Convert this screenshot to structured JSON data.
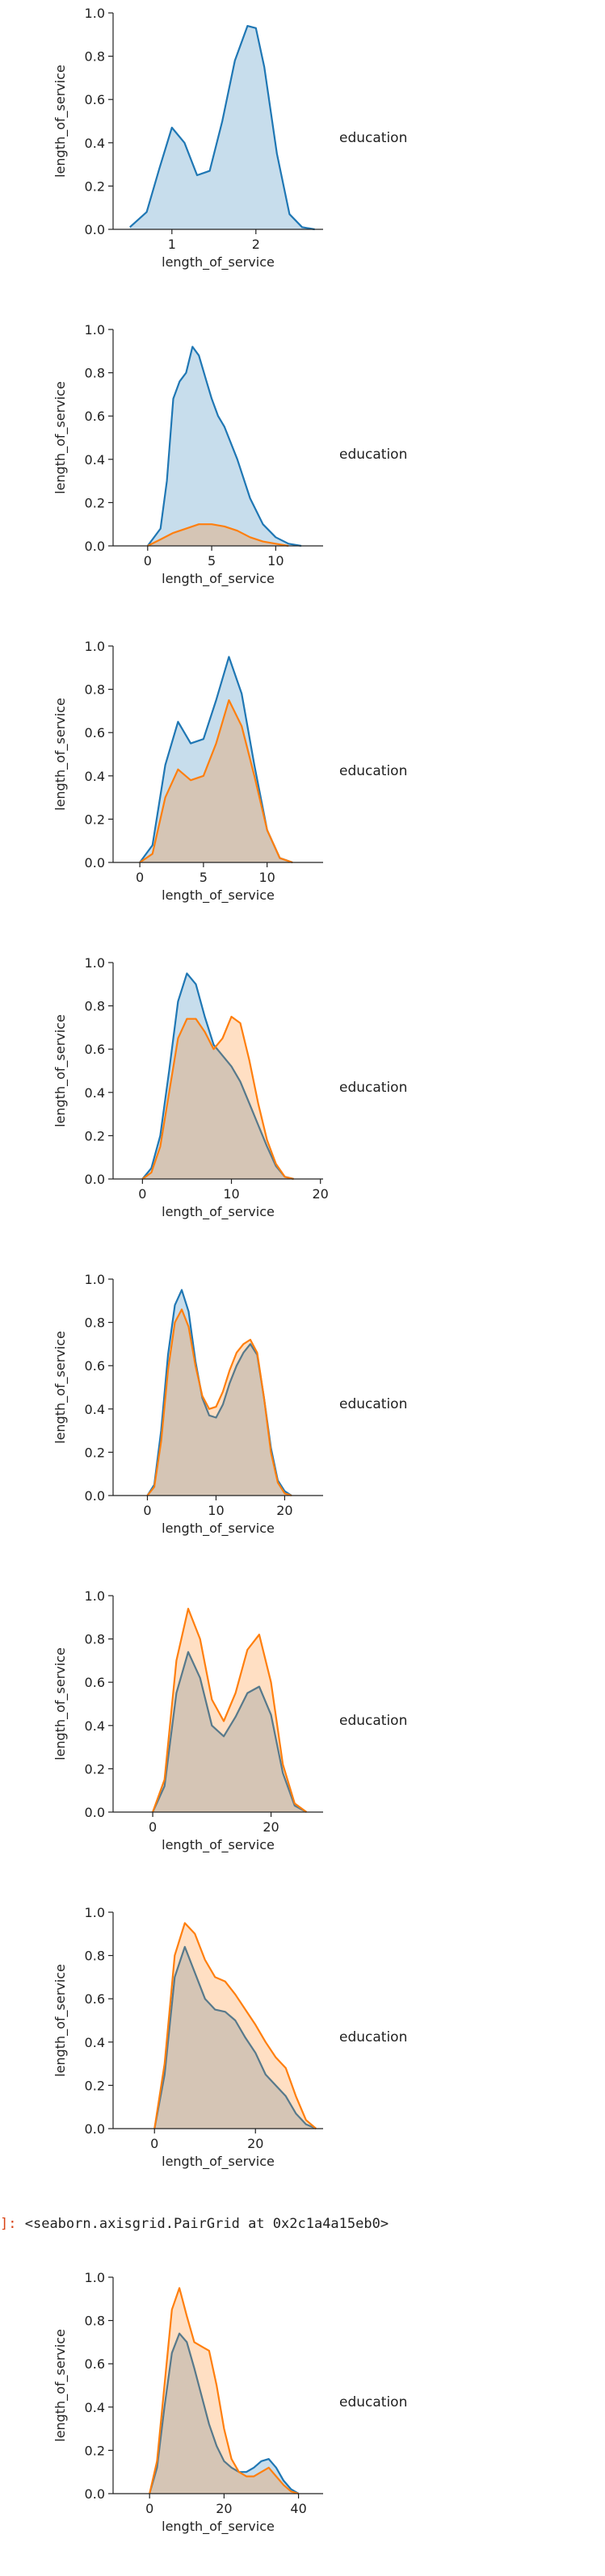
{
  "output_prompt": "]:",
  "output_text": "<seaborn.axisgrid.PairGrid at 0x2c1a4a15eb0>",
  "colors": {
    "series_a": "#1f77b4",
    "series_b": "#ff7f0e"
  },
  "chart_data": [
    {
      "type": "area",
      "title": "",
      "xlabel": "length_of_service",
      "ylabel": "length_of_service",
      "legend_title": "education",
      "ylim": [
        0,
        1
      ],
      "xlim": [
        0.3,
        2.8
      ],
      "xticks": [
        1,
        2
      ],
      "yticks": [
        0.0,
        0.2,
        0.4,
        0.6,
        0.8,
        1.0
      ],
      "series": [
        {
          "name": "series_a",
          "color": "#1f77b4",
          "x": [
            0.5,
            0.7,
            0.85,
            1.0,
            1.15,
            1.3,
            1.45,
            1.6,
            1.75,
            1.9,
            2.0,
            2.1,
            2.25,
            2.4,
            2.55,
            2.7
          ],
          "y": [
            0.01,
            0.08,
            0.28,
            0.47,
            0.4,
            0.25,
            0.27,
            0.5,
            0.78,
            0.94,
            0.93,
            0.75,
            0.35,
            0.07,
            0.01,
            0.0
          ]
        }
      ]
    },
    {
      "type": "area",
      "title": "",
      "xlabel": "length_of_service",
      "ylabel": "length_of_service",
      "legend_title": "education",
      "ylim": [
        0,
        1
      ],
      "xlim": [
        -2.7,
        13.7
      ],
      "xticks": [
        0,
        5,
        10
      ],
      "yticks": [
        0.0,
        0.2,
        0.4,
        0.6,
        0.8,
        1.0
      ],
      "series": [
        {
          "name": "series_a",
          "color": "#1f77b4",
          "x": [
            0,
            1,
            1.5,
            2,
            2.5,
            3,
            3.5,
            4,
            4.5,
            5,
            5.5,
            6,
            7,
            8,
            9,
            10,
            11,
            12
          ],
          "y": [
            0.0,
            0.08,
            0.3,
            0.68,
            0.76,
            0.8,
            0.92,
            0.88,
            0.78,
            0.68,
            0.6,
            0.55,
            0.4,
            0.22,
            0.1,
            0.04,
            0.01,
            0.0
          ]
        },
        {
          "name": "series_b",
          "color": "#ff7f0e",
          "x": [
            0,
            1,
            2,
            3,
            4,
            5,
            6,
            7,
            8,
            9,
            10,
            11
          ],
          "y": [
            0.0,
            0.03,
            0.06,
            0.08,
            0.1,
            0.1,
            0.09,
            0.07,
            0.04,
            0.02,
            0.01,
            0.0
          ]
        }
      ]
    },
    {
      "type": "area",
      "title": "",
      "xlabel": "length_of_service",
      "ylabel": "length_of_service",
      "legend_title": "education",
      "ylim": [
        0,
        1
      ],
      "xlim": [
        -2.1,
        14.4
      ],
      "xticks": [
        0,
        5,
        10
      ],
      "yticks": [
        0.0,
        0.2,
        0.4,
        0.6,
        0.8,
        1.0
      ],
      "series": [
        {
          "name": "series_a",
          "color": "#1f77b4",
          "x": [
            0,
            1,
            2,
            3,
            4,
            5,
            6,
            7,
            8,
            9,
            10,
            11,
            12
          ],
          "y": [
            0.0,
            0.08,
            0.45,
            0.65,
            0.55,
            0.57,
            0.75,
            0.95,
            0.78,
            0.45,
            0.15,
            0.02,
            0.0
          ]
        },
        {
          "name": "series_b",
          "color": "#ff7f0e",
          "x": [
            0,
            1,
            2,
            3,
            4,
            5,
            6,
            7,
            8,
            9,
            10,
            11,
            12
          ],
          "y": [
            0.0,
            0.04,
            0.3,
            0.43,
            0.38,
            0.4,
            0.55,
            0.75,
            0.63,
            0.4,
            0.15,
            0.02,
            0.0
          ]
        }
      ]
    },
    {
      "type": "area",
      "title": "",
      "xlabel": "length_of_service",
      "ylabel": "length_of_service",
      "legend_title": "education",
      "ylim": [
        0,
        1
      ],
      "xlim": [
        -3.3,
        20.3
      ],
      "xticks": [
        0,
        10,
        20
      ],
      "yticks": [
        0.0,
        0.2,
        0.4,
        0.6,
        0.8,
        1.0
      ],
      "series": [
        {
          "name": "series_a",
          "color": "#1f77b4",
          "x": [
            0,
            1,
            2,
            3,
            4,
            5,
            6,
            7,
            8,
            9,
            10,
            11,
            12,
            13,
            14,
            15,
            16,
            17
          ],
          "y": [
            0.0,
            0.05,
            0.2,
            0.5,
            0.82,
            0.95,
            0.9,
            0.75,
            0.62,
            0.57,
            0.52,
            0.45,
            0.35,
            0.25,
            0.15,
            0.06,
            0.01,
            0.0
          ]
        },
        {
          "name": "series_b",
          "color": "#ff7f0e",
          "x": [
            0,
            1,
            2,
            3,
            4,
            5,
            6,
            7,
            8,
            9,
            10,
            11,
            12,
            13,
            14,
            15,
            16,
            17
          ],
          "y": [
            0.0,
            0.03,
            0.15,
            0.4,
            0.65,
            0.74,
            0.74,
            0.68,
            0.6,
            0.65,
            0.75,
            0.72,
            0.55,
            0.35,
            0.18,
            0.07,
            0.01,
            0.0
          ]
        }
      ]
    },
    {
      "type": "area",
      "title": "",
      "xlabel": "length_of_service",
      "ylabel": "length_of_service",
      "legend_title": "education",
      "ylim": [
        0,
        1
      ],
      "xlim": [
        -5.0,
        25.6
      ],
      "xticks": [
        0,
        10,
        20
      ],
      "yticks": [
        0.0,
        0.2,
        0.4,
        0.6,
        0.8,
        1.0
      ],
      "series": [
        {
          "name": "series_a",
          "color": "#1f77b4",
          "x": [
            0,
            1,
            2,
            3,
            4,
            5,
            6,
            7,
            8,
            9,
            10,
            11,
            12,
            13,
            14,
            15,
            16,
            17,
            18,
            19,
            20,
            21
          ],
          "y": [
            0.0,
            0.05,
            0.3,
            0.65,
            0.88,
            0.95,
            0.85,
            0.62,
            0.45,
            0.37,
            0.36,
            0.42,
            0.52,
            0.6,
            0.66,
            0.7,
            0.65,
            0.45,
            0.22,
            0.07,
            0.02,
            0.0
          ]
        },
        {
          "name": "series_b",
          "color": "#ff7f0e",
          "x": [
            0,
            1,
            2,
            3,
            4,
            5,
            6,
            7,
            8,
            9,
            10,
            11,
            12,
            13,
            14,
            15,
            16,
            17,
            18,
            19,
            20,
            21
          ],
          "y": [
            0.0,
            0.04,
            0.25,
            0.58,
            0.8,
            0.86,
            0.78,
            0.6,
            0.46,
            0.4,
            0.41,
            0.48,
            0.58,
            0.66,
            0.7,
            0.72,
            0.66,
            0.45,
            0.2,
            0.06,
            0.01,
            0.0
          ]
        }
      ]
    },
    {
      "type": "area",
      "title": "",
      "xlabel": "length_of_service",
      "ylabel": "length_of_service",
      "legend_title": "education",
      "ylim": [
        0,
        1
      ],
      "xlim": [
        -6.7,
        28.8
      ],
      "xticks": [
        0,
        20
      ],
      "yticks": [
        0.0,
        0.2,
        0.4,
        0.6,
        0.8,
        1.0
      ],
      "series": [
        {
          "name": "series_a",
          "color": "#1f77b4",
          "x": [
            0,
            2,
            4,
            6,
            8,
            10,
            12,
            14,
            16,
            18,
            20,
            22,
            24,
            26
          ],
          "y": [
            0.0,
            0.12,
            0.55,
            0.74,
            0.62,
            0.4,
            0.35,
            0.44,
            0.55,
            0.58,
            0.45,
            0.18,
            0.03,
            0.0
          ]
        },
        {
          "name": "series_b",
          "color": "#ff7f0e",
          "x": [
            0,
            2,
            4,
            6,
            8,
            10,
            12,
            14,
            16,
            18,
            20,
            22,
            24,
            26
          ],
          "y": [
            0.0,
            0.15,
            0.7,
            0.94,
            0.8,
            0.52,
            0.42,
            0.55,
            0.75,
            0.82,
            0.6,
            0.22,
            0.04,
            0.0
          ]
        }
      ]
    },
    {
      "type": "area",
      "title": "",
      "xlabel": "length_of_service",
      "ylabel": "length_of_service",
      "legend_title": "education",
      "ylim": [
        0,
        1
      ],
      "xlim": [
        -8.2,
        33.4
      ],
      "xticks": [
        0,
        20
      ],
      "yticks": [
        0.0,
        0.2,
        0.4,
        0.6,
        0.8,
        1.0
      ],
      "series": [
        {
          "name": "series_a",
          "color": "#1f77b4",
          "x": [
            0,
            2,
            4,
            6,
            8,
            10,
            12,
            14,
            16,
            18,
            20,
            22,
            24,
            26,
            28,
            30,
            32
          ],
          "y": [
            0.0,
            0.25,
            0.7,
            0.84,
            0.72,
            0.6,
            0.55,
            0.54,
            0.5,
            0.42,
            0.35,
            0.25,
            0.2,
            0.15,
            0.07,
            0.02,
            0.0
          ]
        },
        {
          "name": "series_b",
          "color": "#ff7f0e",
          "x": [
            0,
            2,
            4,
            6,
            8,
            10,
            12,
            14,
            16,
            18,
            20,
            22,
            24,
            26,
            28,
            30,
            32
          ],
          "y": [
            0.0,
            0.3,
            0.8,
            0.95,
            0.9,
            0.78,
            0.7,
            0.68,
            0.62,
            0.55,
            0.48,
            0.4,
            0.33,
            0.28,
            0.15,
            0.04,
            0.0
          ]
        }
      ]
    },
    {
      "type": "area",
      "title": "",
      "xlabel": "length_of_service",
      "ylabel": "length_of_service",
      "legend_title": "education",
      "ylim": [
        0,
        1
      ],
      "xlim": [
        -9.8,
        46.6
      ],
      "xticks": [
        0,
        20,
        40
      ],
      "yticks": [
        0.0,
        0.2,
        0.4,
        0.6,
        0.8,
        1.0
      ],
      "series": [
        {
          "name": "series_a",
          "color": "#1f77b4",
          "x": [
            0,
            2,
            4,
            6,
            8,
            10,
            12,
            14,
            16,
            18,
            20,
            22,
            24,
            26,
            28,
            30,
            32,
            34,
            36,
            38,
            40
          ],
          "y": [
            0.0,
            0.12,
            0.4,
            0.65,
            0.74,
            0.7,
            0.58,
            0.45,
            0.32,
            0.22,
            0.15,
            0.12,
            0.1,
            0.1,
            0.12,
            0.15,
            0.16,
            0.12,
            0.06,
            0.02,
            0.0
          ]
        },
        {
          "name": "series_b",
          "color": "#ff7f0e",
          "x": [
            0,
            2,
            4,
            6,
            8,
            10,
            12,
            14,
            16,
            18,
            20,
            22,
            24,
            26,
            28,
            30,
            32,
            34,
            36,
            38,
            40
          ],
          "y": [
            0.0,
            0.15,
            0.5,
            0.85,
            0.95,
            0.82,
            0.7,
            0.68,
            0.66,
            0.5,
            0.3,
            0.16,
            0.1,
            0.08,
            0.08,
            0.1,
            0.12,
            0.08,
            0.04,
            0.01,
            0.0
          ]
        }
      ]
    }
  ]
}
